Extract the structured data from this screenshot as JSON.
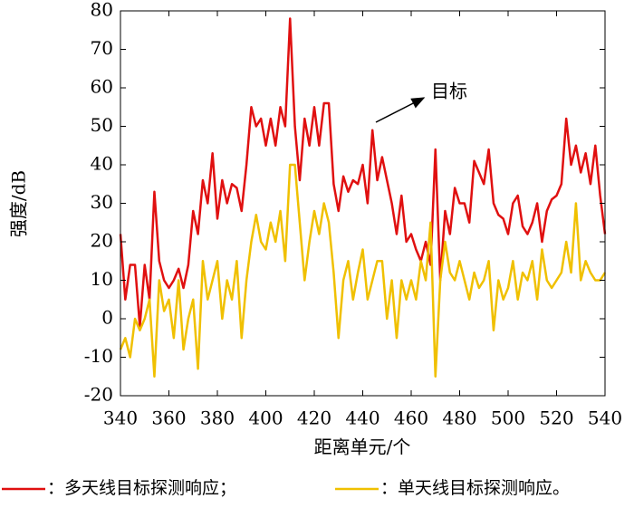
{
  "chart_data": {
    "type": "line",
    "xlabel": "距离单元/个",
    "ylabel": "强度/dB",
    "annotation": "目标",
    "xlim": [
      340,
      540
    ],
    "xticks": [
      340,
      360,
      380,
      400,
      420,
      440,
      460,
      480,
      500,
      520,
      540
    ],
    "ylim": [
      -20,
      80
    ],
    "yticks": [
      -20,
      -10,
      0,
      10,
      20,
      30,
      40,
      50,
      60,
      70,
      80
    ],
    "x": [
      340,
      342,
      344,
      346,
      348,
      350,
      352,
      354,
      356,
      358,
      360,
      362,
      364,
      366,
      368,
      370,
      372,
      374,
      376,
      378,
      380,
      382,
      384,
      386,
      388,
      390,
      392,
      394,
      396,
      398,
      400,
      402,
      404,
      406,
      408,
      410,
      412,
      414,
      416,
      418,
      420,
      422,
      424,
      426,
      428,
      430,
      432,
      434,
      436,
      438,
      440,
      442,
      444,
      446,
      448,
      450,
      452,
      454,
      456,
      458,
      460,
      462,
      464,
      466,
      468,
      470,
      472,
      474,
      476,
      478,
      480,
      482,
      484,
      486,
      488,
      490,
      492,
      494,
      496,
      498,
      500,
      502,
      504,
      506,
      508,
      510,
      512,
      514,
      516,
      518,
      520,
      522,
      524,
      526,
      528,
      530,
      532,
      534,
      536,
      538,
      540
    ],
    "series": [
      {
        "name": "：多天线目标探测响应；",
        "color": "#e01010",
        "values": [
          22,
          5,
          14,
          14,
          -2,
          14,
          5,
          33,
          15,
          10,
          8,
          10,
          13,
          8,
          14,
          28,
          22,
          36,
          30,
          43,
          26,
          36,
          30,
          35,
          34,
          28,
          40,
          55,
          50,
          52,
          45,
          52,
          45,
          55,
          50,
          78,
          50,
          36,
          52,
          45,
          55,
          45,
          56,
          56,
          35,
          28,
          37,
          33,
          36,
          35,
          40,
          30,
          49,
          36,
          42,
          36,
          30,
          22,
          32,
          20,
          22,
          18,
          15,
          20,
          14,
          44,
          10,
          28,
          22,
          34,
          30,
          30,
          25,
          41,
          38,
          35,
          44,
          30,
          27,
          26,
          22,
          30,
          32,
          24,
          22,
          25,
          30,
          20,
          28,
          31,
          32,
          35,
          52,
          40,
          45,
          38,
          43,
          35,
          45,
          32,
          22
        ]
      },
      {
        "name": "：单天线目标探测响应。",
        "color": "#f0c000",
        "values": [
          -8,
          -5,
          -10,
          0,
          -3,
          0,
          5,
          -15,
          10,
          2,
          5,
          -5,
          10,
          -8,
          0,
          5,
          -13,
          15,
          5,
          10,
          15,
          0,
          10,
          5,
          15,
          -5,
          10,
          20,
          27,
          20,
          18,
          25,
          20,
          28,
          15,
          40,
          40,
          25,
          10,
          20,
          28,
          22,
          30,
          25,
          12,
          -5,
          10,
          15,
          5,
          12,
          18,
          5,
          10,
          15,
          15,
          0,
          10,
          -5,
          10,
          5,
          10,
          5,
          15,
          10,
          25,
          -15,
          10,
          20,
          12,
          10,
          15,
          10,
          5,
          12,
          8,
          10,
          15,
          -3,
          10,
          5,
          8,
          15,
          5,
          12,
          10,
          15,
          5,
          18,
          10,
          8,
          10,
          12,
          20,
          12,
          30,
          10,
          15,
          12,
          10,
          10,
          12
        ]
      }
    ]
  }
}
